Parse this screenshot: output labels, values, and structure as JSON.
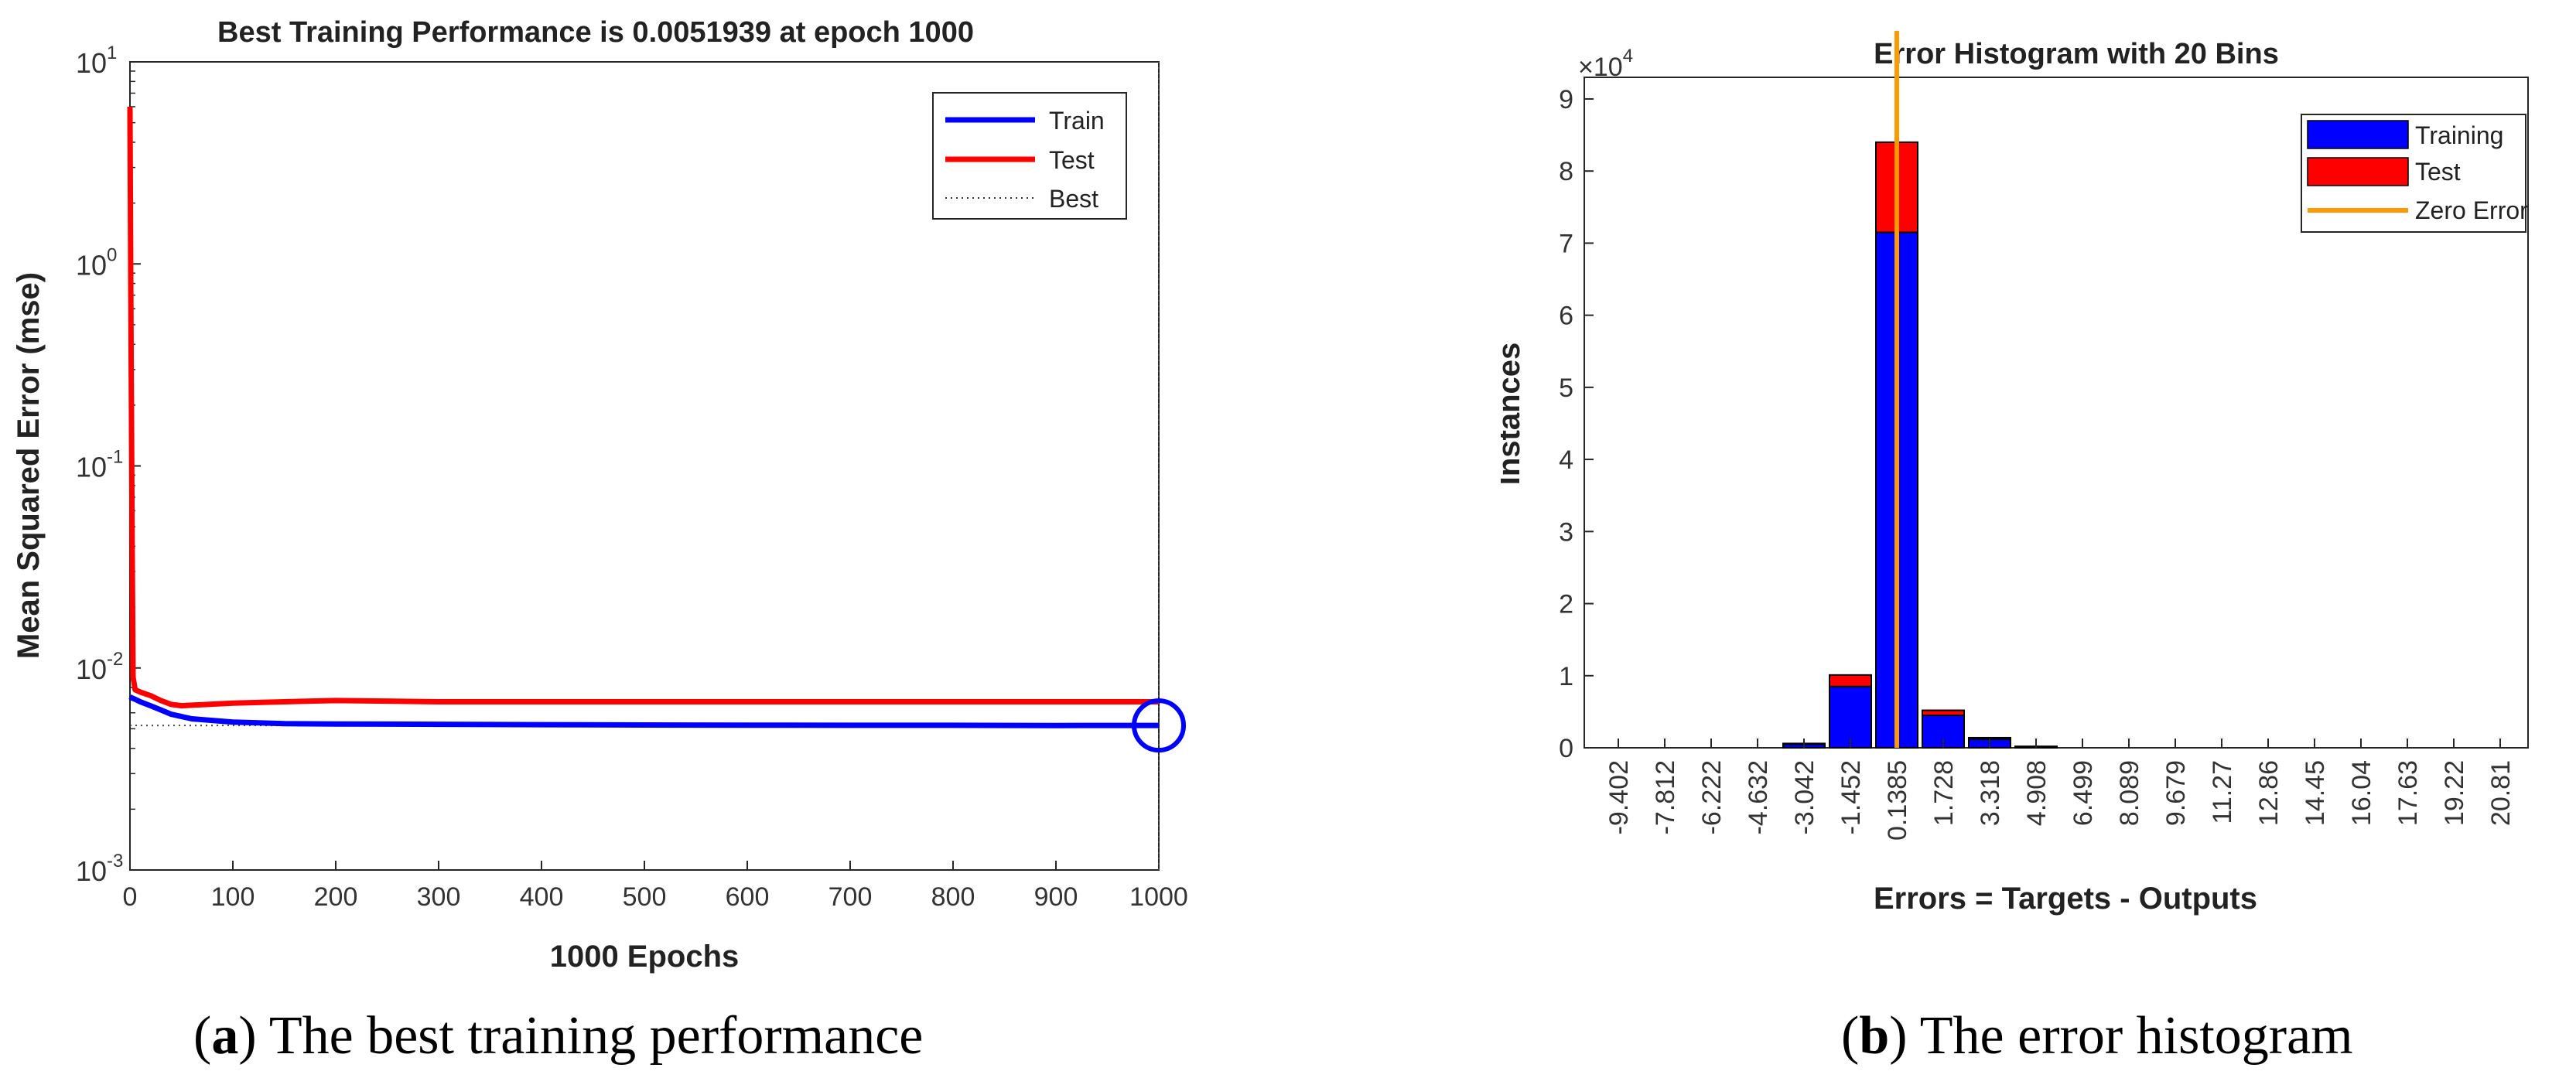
{
  "chart_data": [
    {
      "type": "line",
      "title": "Best Training Performance is 0.0051939 at epoch 1000",
      "xlabel": "1000 Epochs",
      "ylabel": "Mean Squared Error  (mse)",
      "yscale": "log",
      "xlim": [
        0,
        1000
      ],
      "ylim": [
        0.001,
        10
      ],
      "xticks": [
        0,
        100,
        200,
        300,
        400,
        500,
        600,
        700,
        800,
        900,
        1000
      ],
      "yticks": [
        {
          "value": 0.001,
          "base": "10",
          "exp": "-3"
        },
        {
          "value": 0.01,
          "base": "10",
          "exp": "-2"
        },
        {
          "value": 0.1,
          "base": "10",
          "exp": "-1"
        },
        {
          "value": 1,
          "base": "10",
          "exp": "0"
        },
        {
          "value": 10,
          "base": "10",
          "exp": "1"
        }
      ],
      "series": [
        {
          "name": "Train",
          "color": "#0000ff",
          "x": [
            0,
            2,
            5,
            10,
            20,
            30,
            40,
            60,
            80,
            100,
            150,
            200,
            300,
            400,
            500,
            600,
            700,
            800,
            900,
            1000
          ],
          "y": [
            0.0072,
            0.0071,
            0.007,
            0.0068,
            0.0065,
            0.0062,
            0.0059,
            0.0056,
            0.0055,
            0.0054,
            0.0053,
            0.00528,
            0.00526,
            0.00524,
            0.00522,
            0.00521,
            0.0052,
            0.0052,
            0.00519,
            0.0051939
          ]
        },
        {
          "name": "Test",
          "color": "#ff0000",
          "x": [
            0,
            1,
            2,
            3,
            5,
            10,
            20,
            30,
            40,
            50,
            100,
            150,
            200,
            300,
            400,
            500,
            600,
            700,
            800,
            900,
            1000
          ],
          "y": [
            6.0,
            0.5,
            0.05,
            0.009,
            0.0078,
            0.0076,
            0.0073,
            0.0069,
            0.0066,
            0.0065,
            0.0067,
            0.0068,
            0.0069,
            0.0068,
            0.0068,
            0.0068,
            0.0068,
            0.0068,
            0.0068,
            0.0068,
            0.0068
          ]
        }
      ],
      "best": {
        "label": "Best",
        "value": 0.0051939,
        "epoch": 1000
      },
      "legend": [
        "Train",
        "Test",
        "Best"
      ],
      "legend_position": "top-right"
    },
    {
      "type": "bar",
      "stacked": true,
      "title": "Error Histogram with 20 Bins",
      "xlabel": "Errors = Targets - Outputs",
      "ylabel": "Instances",
      "y_multiplier_base": "10",
      "y_multiplier_exp": "4",
      "ylim": [
        0,
        9.3
      ],
      "yticks": [
        0,
        1,
        2,
        3,
        4,
        5,
        6,
        7,
        8,
        9
      ],
      "categories": [
        "-9.402",
        "-7.812",
        "-6.222",
        "-4.632",
        "-3.042",
        "-1.452",
        "0.1385",
        "1.728",
        "3.318",
        "4.908",
        "6.499",
        "8.089",
        "9.679",
        "11.27",
        "12.86",
        "14.45",
        "16.04",
        "17.63",
        "19.22",
        "20.81"
      ],
      "series": [
        {
          "name": "Training",
          "color": "#0000ff",
          "values": [
            0,
            0,
            0,
            0,
            0.05,
            0.85,
            7.15,
            0.45,
            0.12,
            0.02,
            0,
            0,
            0,
            0,
            0,
            0,
            0,
            0,
            0,
            0
          ]
        },
        {
          "name": "Test",
          "color": "#ff0000",
          "values": [
            0,
            0,
            0,
            0,
            0.01,
            0.16,
            1.25,
            0.07,
            0.02,
            0,
            0,
            0,
            0,
            0,
            0,
            0,
            0,
            0,
            0,
            0
          ]
        }
      ],
      "zero_error": {
        "name": "Zero Error",
        "color": "#ff9900",
        "bin_index": 6
      },
      "legend": [
        "Training",
        "Test",
        "Zero Error"
      ],
      "legend_position": "top-right"
    }
  ],
  "captions": [
    {
      "letter": "a",
      "open": "(",
      "close": ")",
      "text": " The best training performance"
    },
    {
      "letter": "b",
      "open": "(",
      "close": ")",
      "text": " The error histogram"
    }
  ]
}
